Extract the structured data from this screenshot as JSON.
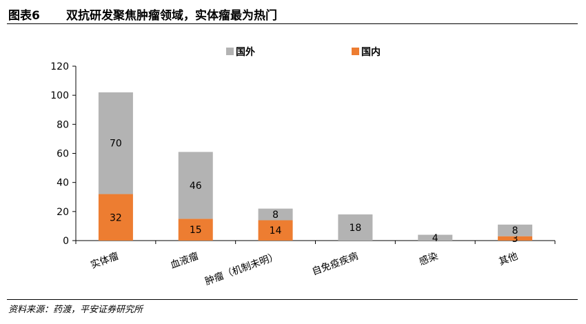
{
  "header": {
    "label": "图表6",
    "title": "双抗研发聚焦肿瘤领域，实体瘤最为热门"
  },
  "source": "资料来源：药渡，平安证券研究所",
  "colors": {
    "foreign": "#b3b3b3",
    "domestic": "#ed7d31"
  },
  "chart_data": {
    "type": "bar",
    "stacked": true,
    "categories": [
      "实体瘤",
      "血液瘤",
      "肿瘤（机制未明）",
      "自免疫疾病",
      "感染",
      "其他"
    ],
    "series": [
      {
        "name": "国内",
        "values": [
          32,
          15,
          14,
          0,
          0,
          3
        ]
      },
      {
        "name": "国外",
        "values": [
          70,
          46,
          8,
          18,
          4,
          8
        ]
      }
    ],
    "yticks": [
      "0",
      "20",
      "40",
      "60",
      "80",
      "100",
      "120"
    ],
    "ylim": [
      0,
      120
    ],
    "legend_position": "top",
    "grid": false
  }
}
